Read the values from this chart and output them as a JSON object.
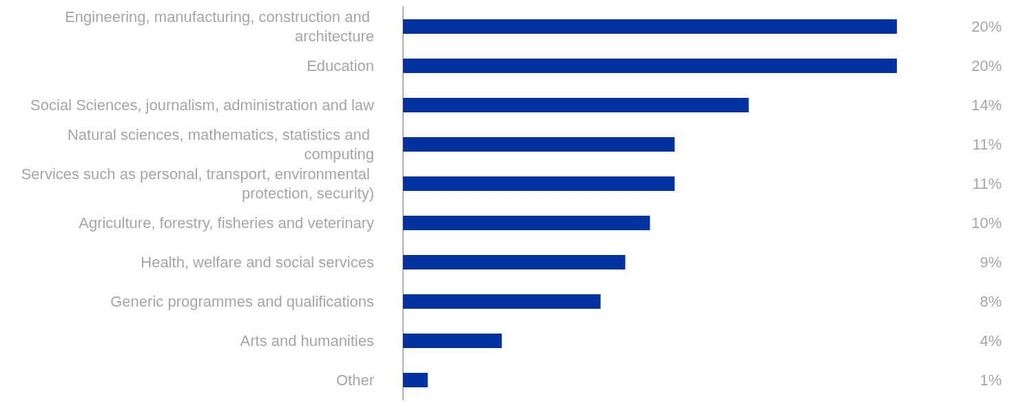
{
  "chart_data": {
    "type": "bar",
    "orientation": "horizontal",
    "categories": [
      "Engineering, manufacturing, construction and architecture",
      "Education",
      "Social Sciences, journalism, administration and law",
      "Natural sciences, mathematics, statistics and computing",
      "Services such as personal, transport, environmental protection, security)",
      "Agriculture, forestry, fisheries and veterinary",
      "Health, welfare and social services",
      "Generic programmes and qualifications",
      "Arts and humanities",
      "Other"
    ],
    "values": [
      20,
      20,
      14,
      11,
      11,
      10,
      9,
      8,
      4,
      1
    ],
    "value_labels": [
      "20%",
      "20%",
      "14%",
      "11%",
      "11%",
      "10%",
      "9%",
      "8%",
      "4%",
      "1%"
    ],
    "color": "#0033a0",
    "grid": false
  }
}
